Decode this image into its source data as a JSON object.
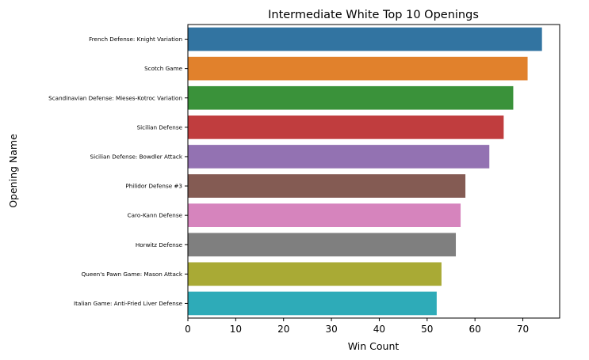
{
  "chart_data": {
    "type": "bar",
    "orientation": "horizontal",
    "title": "Intermediate White Top 10 Openings",
    "xlabel": "Win Count",
    "ylabel": "Opening Name",
    "xlim": [
      0,
      77.7
    ],
    "xticks": [
      0,
      10,
      20,
      30,
      40,
      50,
      60,
      70
    ],
    "grid": false,
    "categories": [
      "French Defense: Knight Variation",
      "Scotch Game",
      "Scandinavian Defense: Mieses-Kotroc Variation",
      "Sicilian Defense",
      "Sicilian Defense: Bowdler Attack",
      "Philidor Defense #3",
      "Caro-Kann Defense",
      "Horwitz Defense",
      "Queen's Pawn Game: Mason Attack",
      "Italian Game: Anti-Fried Liver Defense"
    ],
    "values": [
      74,
      71,
      68,
      66,
      63,
      58,
      57,
      56,
      53,
      52
    ],
    "colors": [
      "#3274a1",
      "#e1812c",
      "#3a923a",
      "#c03d3e",
      "#9372b2",
      "#845b53",
      "#d684bd",
      "#7f7f7f",
      "#a9aa35",
      "#2eabb8"
    ]
  }
}
